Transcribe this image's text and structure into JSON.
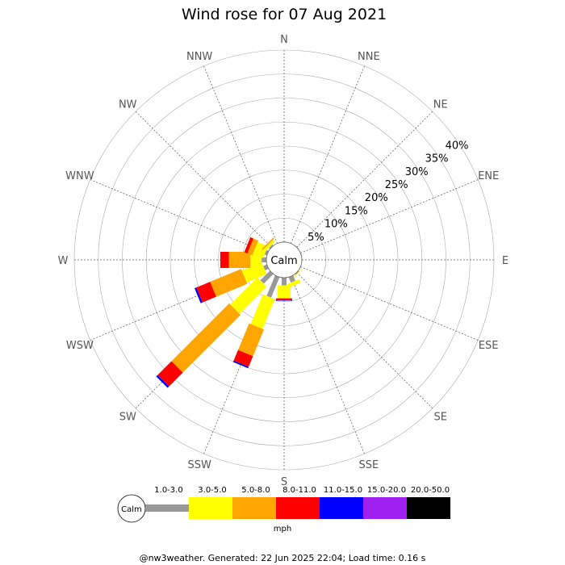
{
  "chart_data": {
    "type": "wind-rose",
    "title": "Wind rose for 07 Aug 2021",
    "directions": [
      "N",
      "NNE",
      "NE",
      "ENE",
      "E",
      "ESE",
      "SE",
      "SSE",
      "S",
      "SSW",
      "SW",
      "WSW",
      "W",
      "WNW",
      "NW",
      "NNW"
    ],
    "ring_labels": [
      "5%",
      "10%",
      "15%",
      "20%",
      "25%",
      "30%",
      "35%",
      "40%"
    ],
    "rmax": 40,
    "calm_label": "Calm",
    "speed_bins": [
      {
        "label": "1.0-3.0",
        "color": "#999999"
      },
      {
        "label": "3.0-5.0",
        "color": "#ffff00"
      },
      {
        "label": "5.0-8.0",
        "color": "#ffa500"
      },
      {
        "label": "8.0-11.0",
        "color": "#ff0000"
      },
      {
        "label": "11.0-15.0",
        "color": "#0000ff"
      },
      {
        "label": "15.0-20.0",
        "color": "#a020f0"
      },
      {
        "label": "20.0-50.0",
        "color": "#000000"
      }
    ],
    "unit": "mph",
    "series": [
      {
        "direction": "N",
        "cumulative": [
          0.1,
          0.1,
          0.1,
          0.1,
          0.1,
          0.1,
          0.1
        ]
      },
      {
        "direction": "NNE",
        "cumulative": [
          0,
          0,
          0,
          0,
          0,
          0,
          0
        ]
      },
      {
        "direction": "NE",
        "cumulative": [
          0,
          0,
          0,
          0,
          0,
          0,
          0
        ]
      },
      {
        "direction": "ENE",
        "cumulative": [
          0,
          0,
          0,
          0,
          0,
          0,
          0
        ]
      },
      {
        "direction": "E",
        "cumulative": [
          0,
          0,
          0,
          0,
          0,
          0,
          0
        ]
      },
      {
        "direction": "ESE",
        "cumulative": [
          0,
          0,
          0,
          0,
          0,
          0,
          0
        ]
      },
      {
        "direction": "SE",
        "cumulative": [
          0.2,
          0.3,
          0.3,
          0.3,
          0.3,
          0.3,
          0.3
        ]
      },
      {
        "direction": "SSE",
        "cumulative": [
          1.2,
          2.0,
          2.0,
          2.0,
          2.0,
          2.0,
          2.0
        ]
      },
      {
        "direction": "S",
        "cumulative": [
          1.6,
          4.3,
          4.3,
          4.7,
          4.8,
          4.8,
          4.8
        ]
      },
      {
        "direction": "SSW",
        "cumulative": [
          4.6,
          11.3,
          17.3,
          19.7,
          20.0,
          20.0,
          20.0
        ]
      },
      {
        "direction": "SW",
        "cumulative": [
          2.8,
          10.8,
          27.8,
          31.9,
          32.3,
          32.3,
          32.3
        ]
      },
      {
        "direction": "WSW",
        "cumulative": [
          0.8,
          5.3,
          12.3,
          15.4,
          15.8,
          15.8,
          15.8
        ]
      },
      {
        "direction": "W",
        "cumulative": [
          1.0,
          3.3,
          7.8,
          9.6,
          9.6,
          9.6,
          9.6
        ]
      },
      {
        "direction": "WNW",
        "cumulative": [
          0.5,
          2.8,
          3.9,
          4.6,
          4.6,
          4.6,
          4.6
        ]
      },
      {
        "direction": "NW",
        "cumulative": [
          0.3,
          0.9,
          1.2,
          1.2,
          1.2,
          1.2,
          1.2
        ]
      },
      {
        "direction": "NNW",
        "cumulative": [
          0,
          0,
          0,
          0,
          0,
          0,
          0
        ]
      }
    ]
  },
  "footer": "@nw3weather. Generated: 22 Jun 2025 22:04; Load time: 0.16 s"
}
